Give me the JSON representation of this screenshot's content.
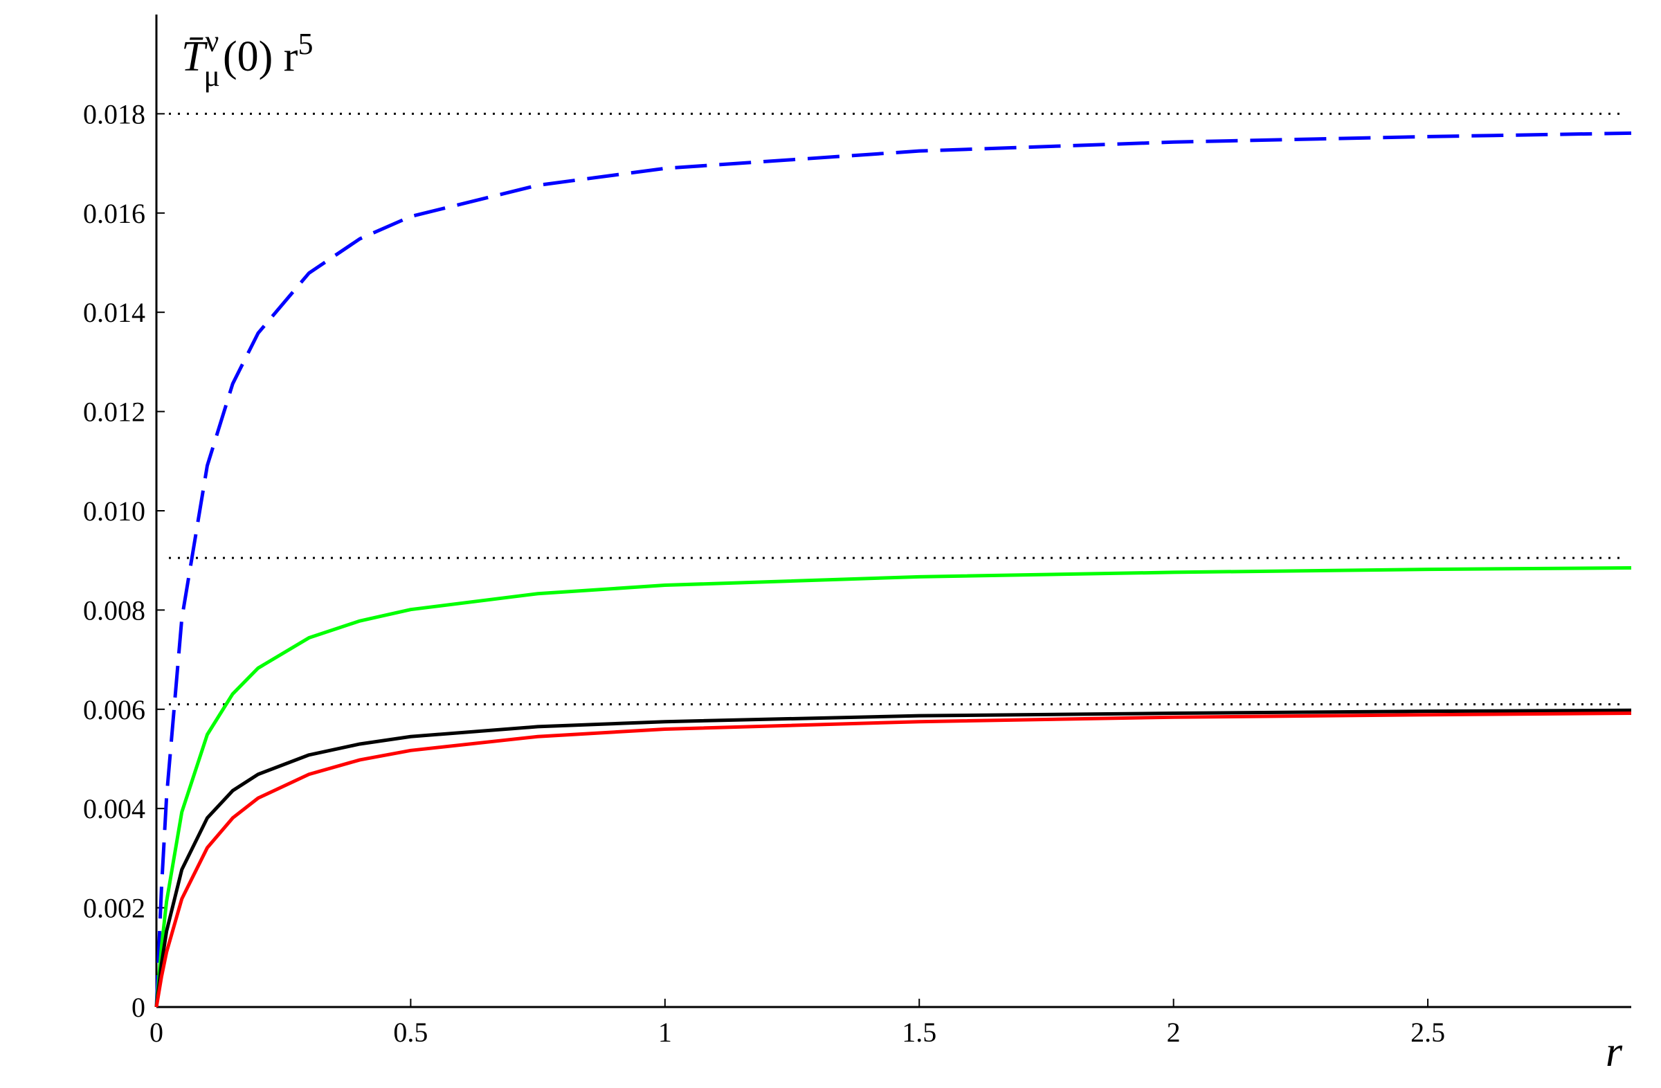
{
  "chart_data": {
    "type": "line",
    "ylabel": {
      "base": "T̄",
      "sup": "ν",
      "sub": "μ",
      "rest": "(0) r",
      "power": "5"
    },
    "xlabel": "r",
    "x": [
      0,
      0.01,
      0.02,
      0.05,
      0.1,
      0.15,
      0.2,
      0.3,
      0.4,
      0.5,
      0.75,
      1,
      1.5,
      2,
      2.5,
      2.9
    ],
    "series": [
      {
        "color": "#0000ff",
        "dash": "dashed",
        "values": [
          0,
          0.0024,
          0.00424,
          0.00783,
          0.01091,
          0.01256,
          0.01358,
          0.01479,
          0.01548,
          0.01593,
          0.01656,
          0.0169,
          0.01725,
          0.01743,
          0.01754,
          0.01761
        ]
      },
      {
        "color": "#00ff00",
        "dash": "solid",
        "values": [
          0,
          0.00121,
          0.00213,
          0.00393,
          0.00549,
          0.00631,
          0.00683,
          0.00744,
          0.00778,
          0.00801,
          0.00833,
          0.0085,
          0.00867,
          0.00876,
          0.00882,
          0.00885
        ]
      },
      {
        "color": "#000000",
        "dash": "solid",
        "values": [
          0,
          0.00087,
          0.00153,
          0.00277,
          0.00381,
          0.00436,
          0.00469,
          0.00508,
          0.0053,
          0.00545,
          0.00565,
          0.00575,
          0.00587,
          0.00592,
          0.00596,
          0.00598
        ]
      },
      {
        "color": "#ff0000",
        "dash": "solid",
        "values": [
          0,
          0.00061,
          0.00111,
          0.00218,
          0.00321,
          0.00381,
          0.00421,
          0.00469,
          0.00498,
          0.00517,
          0.00545,
          0.0056,
          0.00575,
          0.00584,
          0.00589,
          0.00592
        ]
      }
    ],
    "hlines": [
      {
        "value": 0.018,
        "style": "dotted"
      },
      {
        "value": 0.00905,
        "style": "dotted"
      },
      {
        "value": 0.0061,
        "style": "dotted"
      }
    ],
    "xlim": [
      0,
      2.9
    ],
    "ylim": [
      0,
      0.02
    ],
    "xticks": [
      0,
      0.5,
      1,
      1.5,
      2,
      2.5
    ],
    "yticks": [
      0,
      0.002,
      0.004,
      0.006,
      0.008,
      {
        "value": 0.01,
        "label": "0.010"
      },
      0.012,
      0.014,
      0.016,
      0.018
    ],
    "grid": false
  }
}
